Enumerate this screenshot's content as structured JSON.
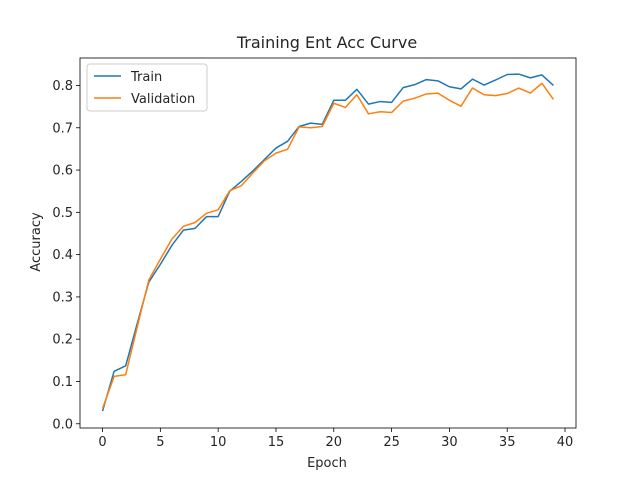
{
  "chart_data": {
    "type": "line",
    "title": "Training Ent Acc Curve",
    "xlabel": "Epoch",
    "ylabel": "Accuracy",
    "xlim": [
      -1.95,
      40.95
    ],
    "ylim": [
      -0.01,
      0.865
    ],
    "xticks": [
      0,
      5,
      10,
      15,
      20,
      25,
      30,
      35,
      40
    ],
    "yticks": [
      0.0,
      0.1,
      0.2,
      0.3,
      0.4,
      0.5,
      0.6,
      0.7,
      0.8
    ],
    "xtick_labels": [
      "0",
      "5",
      "10",
      "15",
      "20",
      "25",
      "30",
      "35",
      "40"
    ],
    "ytick_labels": [
      "0.0",
      "0.1",
      "0.2",
      "0.3",
      "0.4",
      "0.5",
      "0.6",
      "0.7",
      "0.8"
    ],
    "grid": false,
    "legend_position": "top-left",
    "x": [
      0,
      1,
      2,
      3,
      4,
      5,
      6,
      7,
      8,
      9,
      10,
      11,
      12,
      13,
      14,
      15,
      16,
      17,
      18,
      19,
      20,
      21,
      22,
      23,
      24,
      25,
      26,
      27,
      28,
      29,
      30,
      31,
      32,
      33,
      34,
      35,
      36,
      37,
      38,
      39
    ],
    "series": [
      {
        "name": "Train",
        "color": "#1f77b4",
        "values": [
          0.03,
          0.124,
          0.137,
          0.237,
          0.335,
          0.377,
          0.422,
          0.458,
          0.462,
          0.49,
          0.49,
          0.55,
          0.573,
          0.598,
          0.625,
          0.652,
          0.668,
          0.703,
          0.711,
          0.708,
          0.765,
          0.765,
          0.791,
          0.756,
          0.762,
          0.76,
          0.795,
          0.802,
          0.814,
          0.811,
          0.797,
          0.792,
          0.815,
          0.801,
          0.813,
          0.826,
          0.827,
          0.818,
          0.825,
          0.8
        ]
      },
      {
        "name": "Validation",
        "color": "#ff7f0e",
        "values": [
          0.036,
          0.112,
          0.116,
          0.229,
          0.34,
          0.389,
          0.437,
          0.467,
          0.476,
          0.498,
          0.506,
          0.551,
          0.563,
          0.593,
          0.622,
          0.64,
          0.649,
          0.702,
          0.7,
          0.703,
          0.758,
          0.748,
          0.778,
          0.733,
          0.738,
          0.736,
          0.763,
          0.77,
          0.78,
          0.782,
          0.765,
          0.751,
          0.794,
          0.778,
          0.776,
          0.781,
          0.794,
          0.782,
          0.805,
          0.767
        ]
      }
    ]
  }
}
